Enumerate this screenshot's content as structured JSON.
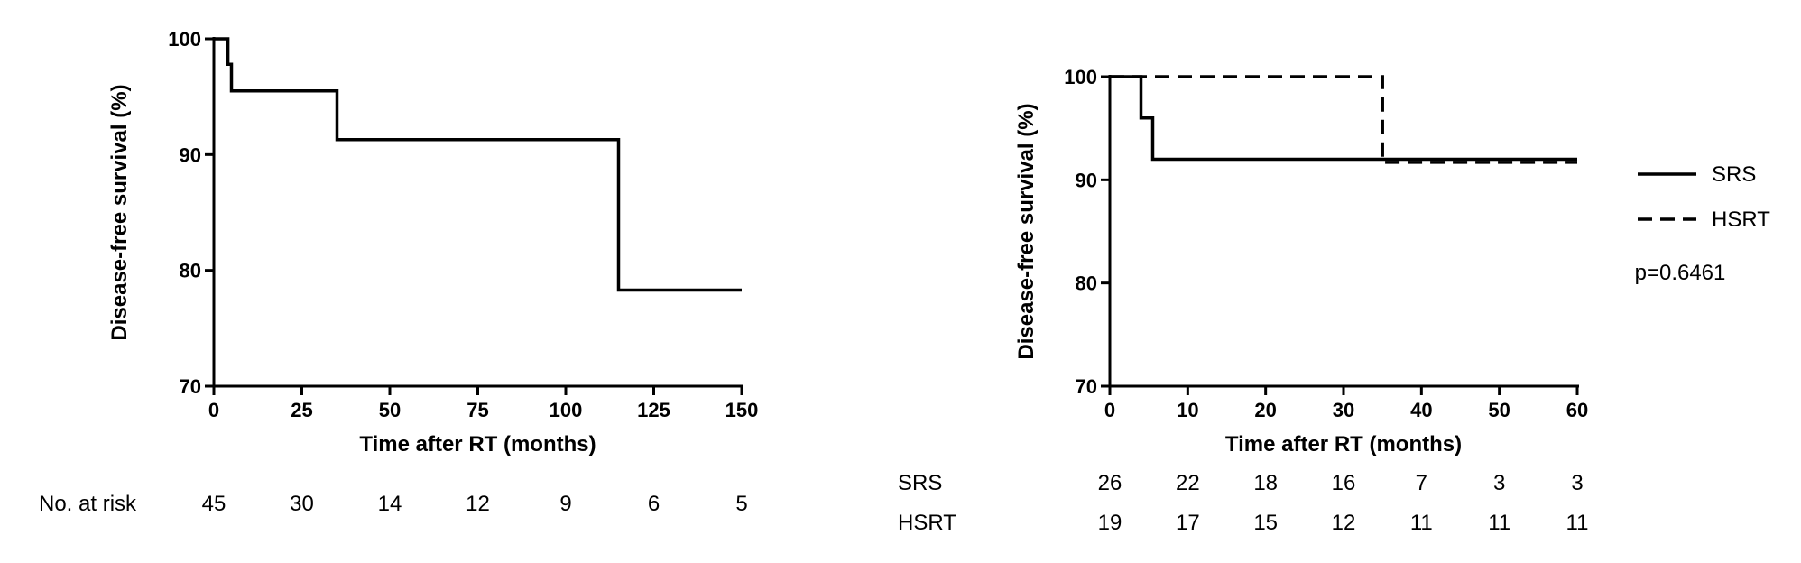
{
  "chart_data": [
    {
      "type": "line",
      "step": true,
      "xlabel": "Time after RT (months)",
      "ylabel": "Disease-free survival (%)",
      "xlim": [
        0,
        150
      ],
      "ylim": [
        70,
        100
      ],
      "xticks": [
        0,
        25,
        50,
        75,
        100,
        125,
        150
      ],
      "yticks": [
        70,
        80,
        90,
        100
      ],
      "grid": false,
      "series": [
        {
          "line_style": "solid",
          "x": [
            0,
            4,
            4,
            5,
            5,
            6,
            6,
            35,
            35,
            115,
            115,
            150
          ],
          "y": [
            100,
            100,
            97.8,
            97.8,
            95.5,
            95.5,
            95.5,
            95.5,
            91.3,
            91.3,
            78.3,
            78.3
          ]
        }
      ],
      "at_risk": {
        "label": "No. at risk",
        "times": [
          0,
          25,
          50,
          75,
          100,
          125,
          150
        ],
        "rows": [
          {
            "label": "",
            "values": [
              "45",
              "30",
              "14",
              "12",
              "9",
              "6",
              "5"
            ]
          }
        ]
      }
    },
    {
      "type": "line",
      "step": true,
      "xlabel": "Time after RT (months)",
      "ylabel": "Disease-free survival (%)",
      "xlim": [
        0,
        60
      ],
      "ylim": [
        70,
        100
      ],
      "xticks": [
        0,
        10,
        20,
        30,
        40,
        50,
        60
      ],
      "yticks": [
        70,
        80,
        90,
        100
      ],
      "grid": false,
      "legend_position": "right",
      "annotation": "p=0.6461",
      "series": [
        {
          "name": "SRS",
          "line_style": "solid",
          "x": [
            0,
            4,
            4,
            5.5,
            5.5,
            60
          ],
          "y": [
            100,
            100,
            96,
            96,
            92,
            92
          ]
        },
        {
          "name": "HSRT",
          "line_style": "dashed",
          "x": [
            0,
            35,
            35,
            60
          ],
          "y": [
            100,
            100,
            91.7,
            91.7
          ]
        }
      ],
      "at_risk": {
        "label": "",
        "times": [
          0,
          10,
          20,
          30,
          40,
          50,
          60
        ],
        "rows": [
          {
            "label": "SRS",
            "values": [
              "26",
              "22",
              "18",
              "16",
              "7",
              "3",
              "3"
            ]
          },
          {
            "label": "HSRT",
            "values": [
              "19",
              "17",
              "15",
              "12",
              "11",
              "11",
              "11"
            ]
          }
        ]
      }
    }
  ]
}
